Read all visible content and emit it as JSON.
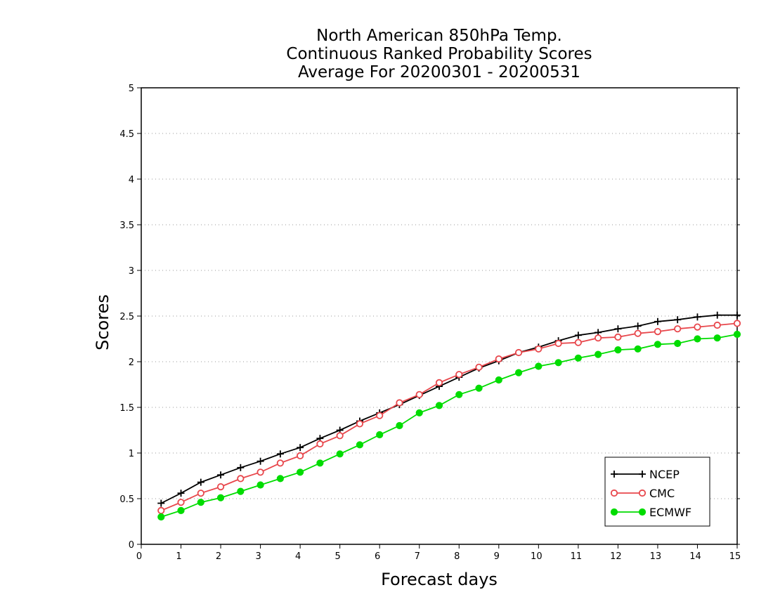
{
  "chart_data": {
    "type": "line",
    "title_lines": [
      "North American 850hPa Temp.",
      "Continuous Ranked Probability Scores",
      "Average For 20200301 - 20200531"
    ],
    "xlabel": "Forecast days",
    "ylabel": "Scores",
    "xlim": [
      0,
      15
    ],
    "ylim": [
      0,
      5
    ],
    "xticks": [
      0,
      1,
      2,
      3,
      4,
      5,
      6,
      7,
      8,
      9,
      10,
      11,
      12,
      13,
      14,
      15
    ],
    "xtick_labels": [
      "0",
      "1",
      "2",
      "3",
      "4",
      "5",
      "6",
      "7",
      "8",
      "9",
      "10",
      "11",
      "12",
      "13",
      "14",
      "15"
    ],
    "yticks": [
      0,
      0.5,
      1,
      1.5,
      2,
      2.5,
      3,
      3.5,
      4,
      4.5,
      5
    ],
    "ytick_labels": [
      "0",
      "0.5",
      "1",
      "1.5",
      "2",
      "2.5",
      "3",
      "3.5",
      "4",
      "4.5",
      "5"
    ],
    "grid": "horizontal dotted",
    "legend_position": "bottom-right",
    "x": [
      0.5,
      1,
      1.5,
      2,
      2.5,
      3,
      3.5,
      4,
      4.5,
      5,
      5.5,
      6,
      6.5,
      7,
      7.5,
      8,
      8.5,
      9,
      9.5,
      10,
      10.5,
      11,
      11.5,
      12,
      12.5,
      13,
      13.5,
      14,
      14.5,
      15
    ],
    "series": [
      {
        "name": "NCEP",
        "color": "#000000",
        "marker": "plus",
        "values": [
          0.45,
          0.56,
          0.68,
          0.76,
          0.84,
          0.91,
          0.99,
          1.06,
          1.16,
          1.25,
          1.35,
          1.44,
          1.53,
          1.63,
          1.73,
          1.83,
          1.93,
          2.01,
          2.1,
          2.16,
          2.23,
          2.29,
          2.32,
          2.36,
          2.39,
          2.44,
          2.46,
          2.49,
          2.51,
          2.51
        ]
      },
      {
        "name": "CMC",
        "color": "#e8474c",
        "marker": "open-circle",
        "values": [
          0.37,
          0.46,
          0.56,
          0.63,
          0.72,
          0.79,
          0.89,
          0.97,
          1.1,
          1.19,
          1.32,
          1.41,
          1.55,
          1.64,
          1.77,
          1.86,
          1.94,
          2.03,
          2.1,
          2.14,
          2.2,
          2.21,
          2.26,
          2.27,
          2.31,
          2.33,
          2.36,
          2.38,
          2.4,
          2.42
        ]
      },
      {
        "name": "ECMWF",
        "color": "#00dc00",
        "marker": "filled-circle",
        "values": [
          0.3,
          0.37,
          0.46,
          0.51,
          0.58,
          0.65,
          0.72,
          0.79,
          0.89,
          0.99,
          1.09,
          1.2,
          1.3,
          1.44,
          1.52,
          1.64,
          1.71,
          1.8,
          1.88,
          1.95,
          1.99,
          2.04,
          2.08,
          2.13,
          2.14,
          2.19,
          2.2,
          2.25,
          2.26,
          2.3
        ]
      }
    ]
  }
}
